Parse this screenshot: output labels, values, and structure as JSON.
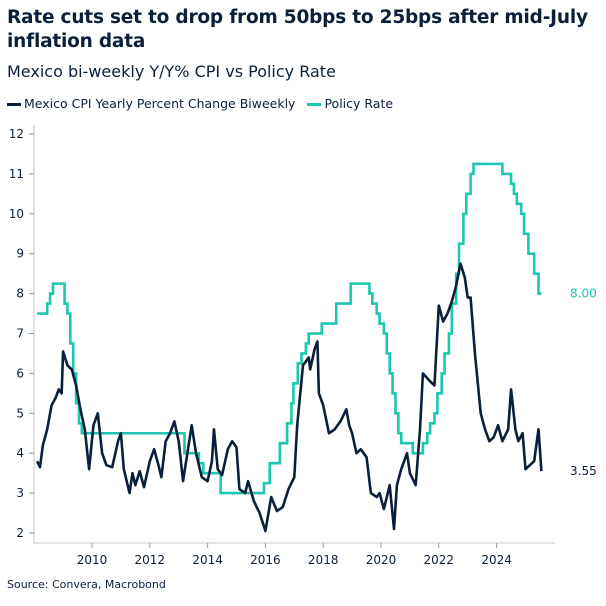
{
  "chart_data": {
    "type": "line",
    "title": "Rate cuts set to drop from 50bps to 25bps after mid-July inflation data",
    "subtitle": "Mexico bi-weekly Y/Y% CPI vs Policy Rate",
    "source": "Source: Convera, Macrobond",
    "ylim": [
      2,
      12
    ],
    "yticks": [
      2,
      3,
      4,
      5,
      6,
      7,
      8,
      9,
      10,
      11,
      12
    ],
    "xlim": [
      2008.0,
      2025.9
    ],
    "xticks": [
      2010,
      2012,
      2014,
      2016,
      2018,
      2020,
      2022,
      2024
    ],
    "grid": false,
    "legend_position": "top-left",
    "series": [
      {
        "name": "Mexico CPI Yearly Percent Change Biweekly",
        "color": "#0b1f3a",
        "last_label": "3.55",
        "points": [
          [
            2008.1,
            3.8
          ],
          [
            2008.2,
            3.65
          ],
          [
            2008.3,
            4.2
          ],
          [
            2008.45,
            4.6
          ],
          [
            2008.6,
            5.2
          ],
          [
            2008.75,
            5.4
          ],
          [
            2008.85,
            5.6
          ],
          [
            2008.95,
            5.5
          ],
          [
            2009.0,
            6.55
          ],
          [
            2009.15,
            6.2
          ],
          [
            2009.3,
            6.1
          ],
          [
            2009.45,
            5.7
          ],
          [
            2009.6,
            5.1
          ],
          [
            2009.75,
            4.6
          ],
          [
            2009.9,
            3.6
          ],
          [
            2010.05,
            4.7
          ],
          [
            2010.2,
            5.0
          ],
          [
            2010.35,
            4.0
          ],
          [
            2010.5,
            3.7
          ],
          [
            2010.7,
            3.65
          ],
          [
            2010.9,
            4.3
          ],
          [
            2011.0,
            4.5
          ],
          [
            2011.1,
            3.6
          ],
          [
            2011.3,
            3.0
          ],
          [
            2011.4,
            3.5
          ],
          [
            2011.5,
            3.2
          ],
          [
            2011.65,
            3.55
          ],
          [
            2011.8,
            3.15
          ],
          [
            2012.0,
            3.8
          ],
          [
            2012.15,
            4.1
          ],
          [
            2012.3,
            3.7
          ],
          [
            2012.4,
            3.4
          ],
          [
            2012.55,
            4.3
          ],
          [
            2012.7,
            4.5
          ],
          [
            2012.85,
            4.8
          ],
          [
            2013.0,
            4.3
          ],
          [
            2013.15,
            3.3
          ],
          [
            2013.3,
            4.0
          ],
          [
            2013.45,
            4.7
          ],
          [
            2013.6,
            4.0
          ],
          [
            2013.8,
            3.4
          ],
          [
            2014.0,
            3.3
          ],
          [
            2014.15,
            3.8
          ],
          [
            2014.22,
            4.6
          ],
          [
            2014.35,
            3.6
          ],
          [
            2014.5,
            3.45
          ],
          [
            2014.7,
            4.1
          ],
          [
            2014.85,
            4.3
          ],
          [
            2015.0,
            4.15
          ],
          [
            2015.1,
            3.1
          ],
          [
            2015.3,
            3.0
          ],
          [
            2015.4,
            3.3
          ],
          [
            2015.6,
            2.8
          ],
          [
            2015.8,
            2.5
          ],
          [
            2016.0,
            2.05
          ],
          [
            2016.2,
            2.9
          ],
          [
            2016.4,
            2.55
          ],
          [
            2016.6,
            2.65
          ],
          [
            2016.8,
            3.1
          ],
          [
            2017.0,
            3.4
          ],
          [
            2017.1,
            4.7
          ],
          [
            2017.3,
            6.2
          ],
          [
            2017.5,
            6.4
          ],
          [
            2017.55,
            6.1
          ],
          [
            2017.7,
            6.6
          ],
          [
            2017.8,
            6.8
          ],
          [
            2017.85,
            5.5
          ],
          [
            2018.0,
            5.2
          ],
          [
            2018.2,
            4.5
          ],
          [
            2018.4,
            4.6
          ],
          [
            2018.6,
            4.8
          ],
          [
            2018.8,
            5.1
          ],
          [
            2018.9,
            4.7
          ],
          [
            2019.0,
            4.5
          ],
          [
            2019.15,
            4.0
          ],
          [
            2019.3,
            4.1
          ],
          [
            2019.5,
            3.9
          ],
          [
            2019.65,
            3.0
          ],
          [
            2019.85,
            2.9
          ],
          [
            2019.95,
            3.0
          ],
          [
            2020.1,
            2.6
          ],
          [
            2020.3,
            3.2
          ],
          [
            2020.45,
            2.1
          ],
          [
            2020.55,
            3.2
          ],
          [
            2020.7,
            3.6
          ],
          [
            2020.9,
            4.0
          ],
          [
            2021.0,
            3.5
          ],
          [
            2021.2,
            3.2
          ],
          [
            2021.35,
            4.6
          ],
          [
            2021.45,
            6.0
          ],
          [
            2021.7,
            5.8
          ],
          [
            2021.85,
            5.7
          ],
          [
            2022.0,
            7.7
          ],
          [
            2022.15,
            7.3
          ],
          [
            2022.3,
            7.5
          ],
          [
            2022.45,
            7.8
          ],
          [
            2022.6,
            8.2
          ],
          [
            2022.75,
            8.75
          ],
          [
            2022.9,
            8.4
          ],
          [
            2023.0,
            7.9
          ],
          [
            2023.1,
            7.9
          ],
          [
            2023.25,
            6.5
          ],
          [
            2023.45,
            5.0
          ],
          [
            2023.6,
            4.6
          ],
          [
            2023.75,
            4.3
          ],
          [
            2023.9,
            4.4
          ],
          [
            2024.05,
            4.7
          ],
          [
            2024.2,
            4.3
          ],
          [
            2024.4,
            4.6
          ],
          [
            2024.5,
            5.6
          ],
          [
            2024.65,
            4.6
          ],
          [
            2024.75,
            4.3
          ],
          [
            2024.9,
            4.5
          ],
          [
            2025.0,
            3.6
          ],
          [
            2025.15,
            3.7
          ],
          [
            2025.3,
            3.8
          ],
          [
            2025.45,
            4.6
          ],
          [
            2025.55,
            3.55
          ]
        ]
      },
      {
        "name": "Policy Rate",
        "color": "#1cc7b1",
        "last_label": "8.00",
        "steps": [
          [
            2008.1,
            7.5
          ],
          [
            2008.45,
            7.75
          ],
          [
            2008.55,
            8.0
          ],
          [
            2008.65,
            8.25
          ],
          [
            2009.05,
            7.75
          ],
          [
            2009.15,
            7.5
          ],
          [
            2009.25,
            6.75
          ],
          [
            2009.35,
            6.0
          ],
          [
            2009.45,
            5.25
          ],
          [
            2009.55,
            4.75
          ],
          [
            2009.65,
            4.5
          ],
          [
            2013.2,
            4.0
          ],
          [
            2013.7,
            3.75
          ],
          [
            2013.85,
            3.5
          ],
          [
            2014.45,
            3.0
          ],
          [
            2015.95,
            3.25
          ],
          [
            2016.15,
            3.75
          ],
          [
            2016.5,
            4.25
          ],
          [
            2016.75,
            4.75
          ],
          [
            2016.9,
            5.25
          ],
          [
            2016.97,
            5.75
          ],
          [
            2017.12,
            6.25
          ],
          [
            2017.25,
            6.5
          ],
          [
            2017.4,
            6.75
          ],
          [
            2017.5,
            7.0
          ],
          [
            2017.95,
            7.25
          ],
          [
            2018.45,
            7.75
          ],
          [
            2018.95,
            8.25
          ],
          [
            2019.6,
            8.0
          ],
          [
            2019.7,
            7.75
          ],
          [
            2019.85,
            7.5
          ],
          [
            2019.95,
            7.25
          ],
          [
            2020.1,
            7.0
          ],
          [
            2020.2,
            6.5
          ],
          [
            2020.3,
            6.0
          ],
          [
            2020.4,
            5.5
          ],
          [
            2020.5,
            5.0
          ],
          [
            2020.6,
            4.5
          ],
          [
            2020.7,
            4.25
          ],
          [
            2021.1,
            4.0
          ],
          [
            2021.45,
            4.25
          ],
          [
            2021.6,
            4.5
          ],
          [
            2021.7,
            4.75
          ],
          [
            2021.85,
            5.0
          ],
          [
            2021.95,
            5.5
          ],
          [
            2022.1,
            6.0
          ],
          [
            2022.2,
            6.5
          ],
          [
            2022.35,
            7.0
          ],
          [
            2022.45,
            7.75
          ],
          [
            2022.6,
            8.5
          ],
          [
            2022.7,
            9.25
          ],
          [
            2022.85,
            10.0
          ],
          [
            2022.95,
            10.5
          ],
          [
            2023.1,
            11.0
          ],
          [
            2023.2,
            11.25
          ],
          [
            2024.2,
            11.0
          ],
          [
            2024.5,
            10.75
          ],
          [
            2024.6,
            10.5
          ],
          [
            2024.7,
            10.25
          ],
          [
            2024.85,
            10.0
          ],
          [
            2024.95,
            9.5
          ],
          [
            2025.1,
            9.0
          ],
          [
            2025.3,
            8.5
          ],
          [
            2025.45,
            8.0
          ],
          [
            2025.55,
            8.0
          ]
        ]
      }
    ]
  }
}
